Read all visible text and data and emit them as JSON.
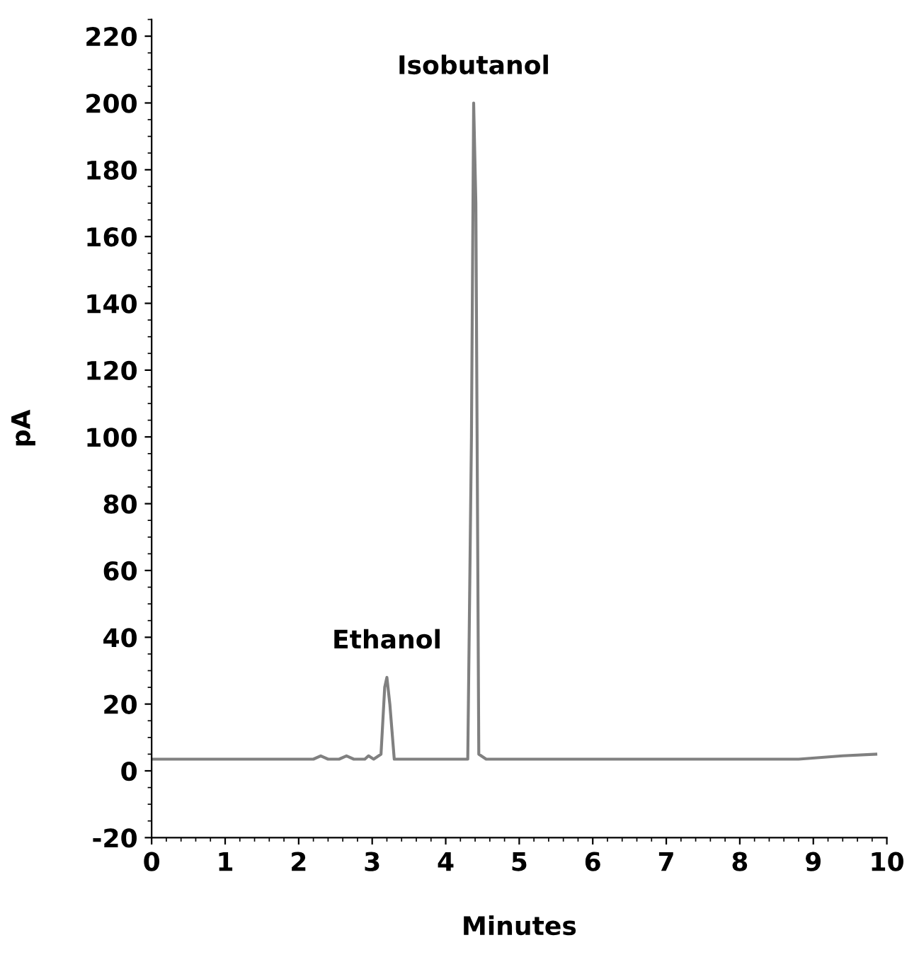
{
  "chart_data": {
    "type": "line",
    "xlabel": "Minutes",
    "ylabel": "pA",
    "xlim": [
      0,
      10
    ],
    "xticks": [
      0,
      1,
      2,
      3,
      4,
      5,
      6,
      7,
      8,
      9,
      10
    ],
    "ylim": [
      -20,
      225
    ],
    "yticks": [
      -20,
      0,
      20,
      40,
      60,
      80,
      100,
      120,
      140,
      160,
      180,
      200,
      220
    ],
    "grid": false,
    "marker": "none",
    "line_style": "solid",
    "series": [
      {
        "color": "#808080",
        "x": [
          0,
          1,
          2,
          2.2,
          2.3,
          2.4,
          2.55,
          2.65,
          2.75,
          2.9,
          2.95,
          3.02,
          3.12,
          3.17,
          3.2,
          3.24,
          3.3,
          3.4,
          4.0,
          4.3,
          4.35,
          4.38,
          4.41,
          4.45,
          4.55,
          5.5,
          7,
          8.8,
          9.4,
          9.85
        ],
        "values": [
          3.5,
          3.5,
          3.5,
          3.5,
          4.5,
          3.5,
          3.5,
          4.5,
          3.5,
          3.5,
          4.5,
          3.5,
          5,
          25,
          28,
          20,
          3.5,
          3.5,
          3.5,
          3.5,
          100,
          200,
          170,
          5,
          3.5,
          3.5,
          3.5,
          3.5,
          4.5,
          5
        ]
      }
    ],
    "annotations": [
      {
        "text": "Ethanol",
        "x": 3.2,
        "y": 28
      },
      {
        "text": "Isobutanol",
        "x": 4.38,
        "y": 200
      }
    ]
  }
}
